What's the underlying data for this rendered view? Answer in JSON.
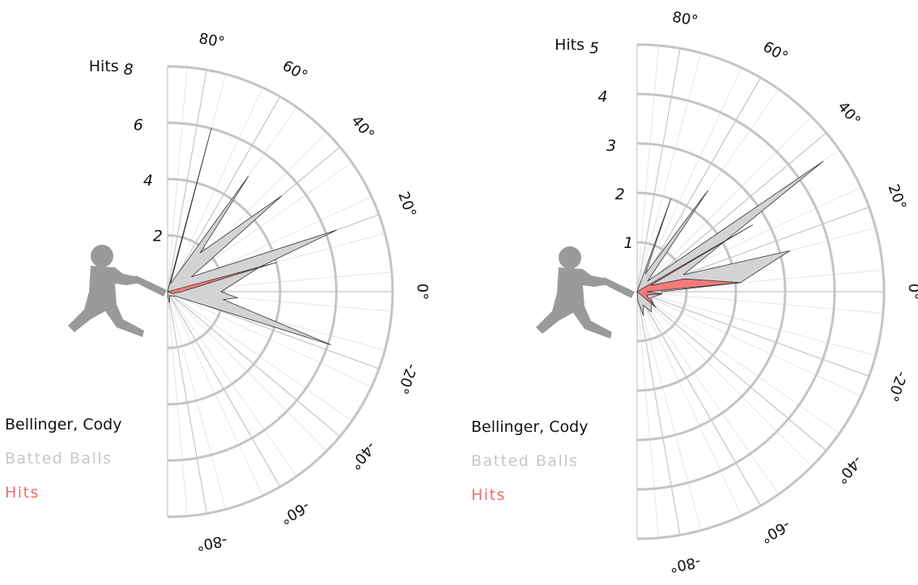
{
  "colors": {
    "batted_fill": "#d3d3d3",
    "hits_fill": "#f47a7a",
    "hits_text": "#f06b6b",
    "legend_batted_text": "#c7c7c7",
    "grid": "#c4c4c4",
    "minor_grid": "#e6e6e6",
    "batter": "#9a9a9a"
  },
  "chart_data": [
    {
      "type": "polar",
      "player": "Bellinger, Cody",
      "legend": [
        "Batted Balls",
        "Hits"
      ],
      "radial_label": "Hits",
      "radial_max": 8,
      "radial_ticks": [
        2,
        4,
        6,
        8
      ],
      "angle_ticks": [
        "80°",
        "60°",
        "40°",
        "20°",
        "0°",
        "-20°",
        "-40°",
        "-60°",
        "-80°"
      ],
      "series": [
        {
          "name": "Batted Balls",
          "points": [
            [
              75,
              6.0
            ],
            [
              70,
              0.3
            ],
            [
              55,
              5.0
            ],
            [
              50,
              1.8
            ],
            [
              40,
              5.3
            ],
            [
              32,
              1.0
            ],
            [
              20,
              6.4
            ],
            [
              15,
              3.4
            ],
            [
              0,
              1.9
            ],
            [
              -5,
              2.5
            ],
            [
              -8,
              2.0
            ],
            [
              -18,
              6.1
            ],
            [
              -30,
              0.3
            ],
            [
              -50,
              0.2
            ],
            [
              -60,
              0.15
            ],
            [
              -70,
              0.2
            ],
            [
              -80,
              0.4
            ],
            [
              -85,
              0.2
            ]
          ]
        },
        {
          "name": "Hits",
          "points": [
            [
              15,
              4.0
            ],
            [
              14,
              2.5
            ],
            [
              0,
              0.5
            ],
            [
              -20,
              0.2
            ]
          ]
        }
      ]
    },
    {
      "type": "polar",
      "player": "Bellinger, Cody",
      "legend": [
        "Batted Balls",
        "Hits"
      ],
      "radial_label": "Hits",
      "radial_max": 5,
      "radial_ticks": [
        1,
        2,
        3,
        4,
        5
      ],
      "angle_ticks": [
        "80°",
        "60°",
        "40°",
        "20°",
        "0°",
        "-20°",
        "-40°",
        "-60°",
        "-80°"
      ],
      "series": [
        {
          "name": "Batted Balls",
          "points": [
            [
              70,
              2.0
            ],
            [
              65,
              0.4
            ],
            [
              55,
              2.5
            ],
            [
              45,
              0.3
            ],
            [
              35,
              4.6
            ],
            [
              20,
              1.0
            ],
            [
              15,
              3.2
            ],
            [
              5,
              2.1
            ],
            [
              0,
              0.5
            ],
            [
              -5,
              0.5
            ],
            [
              -25,
              0.3
            ],
            [
              -35,
              0.4
            ],
            [
              -45,
              0.4
            ],
            [
              -55,
              0.5
            ],
            [
              -65,
              0.3
            ],
            [
              -75,
              0.5
            ],
            [
              -85,
              0.2
            ]
          ]
        },
        {
          "name": "Hits",
          "points": [
            [
              30,
              2.7
            ],
            [
              25,
              0.3
            ],
            [
              15,
              1.0
            ],
            [
              5,
              2.1
            ],
            [
              0,
              0.2
            ],
            [
              -5,
              0.5
            ],
            [
              -20,
              0.2
            ],
            [
              -40,
              0.5
            ]
          ]
        }
      ]
    }
  ]
}
